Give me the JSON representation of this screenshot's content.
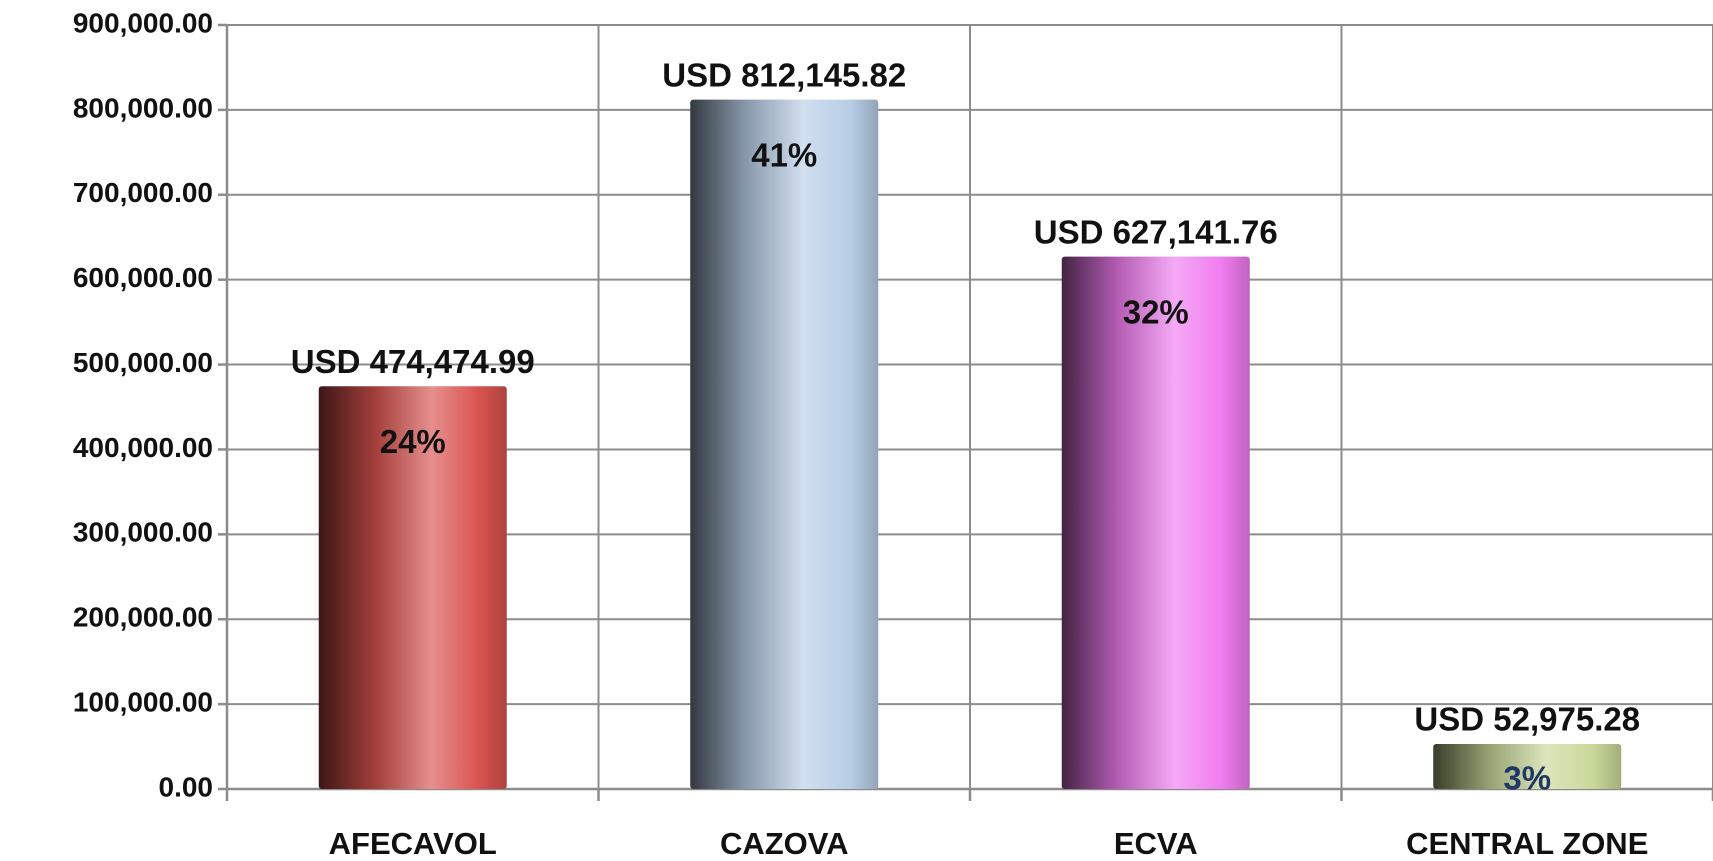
{
  "chart_data": {
    "type": "bar",
    "categories": [
      "AFECAVOL",
      "CAZOVA",
      "ECVA",
      "CENTRAL ZONE"
    ],
    "values": [
      474474.99,
      812145.82,
      627141.76,
      52975.28
    ],
    "value_labels": [
      "USD 474,474.99",
      "USD 812,145.82",
      "USD 627,141.76",
      "USD 52,975.28"
    ],
    "percent_labels": [
      "24%",
      "41%",
      "32%",
      "3%"
    ],
    "colors": [
      "#d9534f",
      "#b8cde6",
      "#f07cf0",
      "#c9d99a"
    ],
    "ylim": [
      0,
      900000
    ],
    "yticks": [
      {
        "value": 0,
        "label": "0.00"
      },
      {
        "value": 100000,
        "label": "100,000.00"
      },
      {
        "value": 200000,
        "label": "200,000.00"
      },
      {
        "value": 300000,
        "label": "300,000.00"
      },
      {
        "value": 400000,
        "label": "400,000.00"
      },
      {
        "value": 500000,
        "label": "500,000.00"
      },
      {
        "value": 600000,
        "label": "600,000.00"
      },
      {
        "value": 700000,
        "label": "700,000.00"
      },
      {
        "value": 800000,
        "label": "800,000.00"
      },
      {
        "value": 900000,
        "label": "900,000.00"
      }
    ],
    "grid": true
  }
}
